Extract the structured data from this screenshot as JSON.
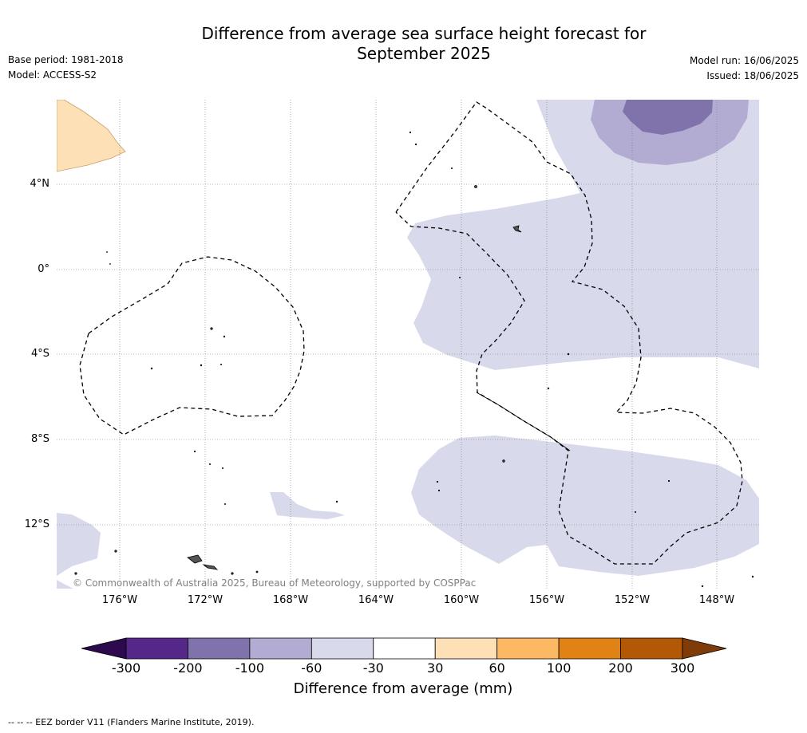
{
  "header": {
    "title_line1": "Difference from average sea surface height forecast for",
    "title_line2": "September 2025",
    "base_period": "Base period: 1981-2018",
    "model": "Model: ACCESS-S2",
    "model_run": "Model run: 16/06/2025",
    "issued": "Issued: 18/06/2025"
  },
  "map": {
    "lat_ticks": [
      "4°N",
      "0°",
      "4°S",
      "8°S",
      "12°S"
    ],
    "lon_ticks": [
      "176°W",
      "172°W",
      "168°W",
      "164°W",
      "160°W",
      "156°W",
      "152°W",
      "148°W"
    ],
    "copyright": "© Commonwealth of Australia 2025, Bureau of Meteorology, supported by COSPPac"
  },
  "colorbar": {
    "title": "Difference from average (mm)",
    "tick_labels": [
      "-300",
      "-200",
      "-100",
      "-60",
      "-30",
      "30",
      "60",
      "100",
      "200",
      "300"
    ],
    "colors": {
      "below_min": "#2d0a4e",
      "bins": [
        "#542788",
        "#8073ac",
        "#b2abd2",
        "#d8daeb",
        "#ffffff",
        "#fee0b6",
        "#fdb863",
        "#e08214",
        "#b35806"
      ],
      "above_max": "#7f3b08"
    }
  },
  "footer": {
    "eez_note": "--  --  -- EEZ border V11 (Flanders Marine Institute, 2019)."
  }
}
